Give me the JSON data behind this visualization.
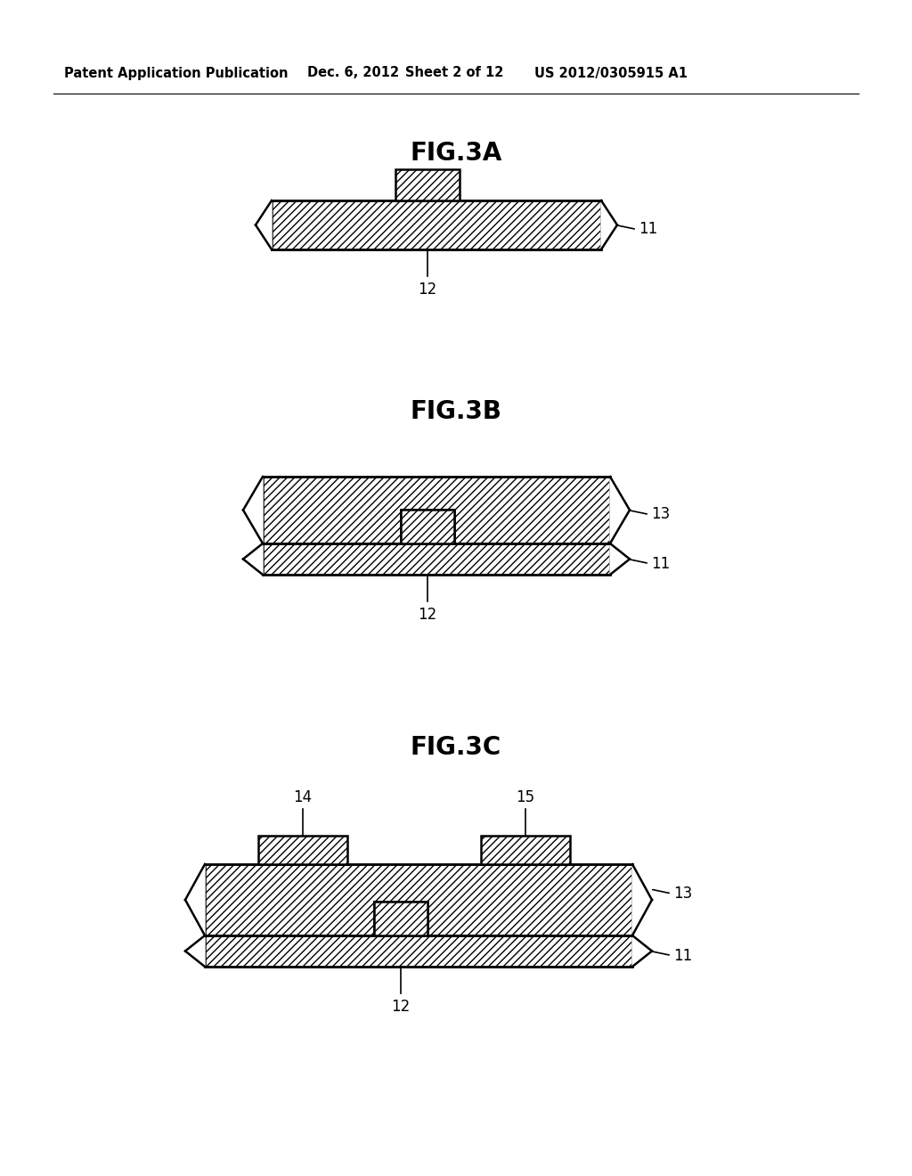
{
  "background_color": "#ffffff",
  "header_text": "Patent Application Publication",
  "header_date": "Dec. 6, 2012",
  "header_sheet": "Sheet 2 of 12",
  "header_patent": "US 2012/0305915 A1",
  "fig3a_title": "FIG.3A",
  "fig3b_title": "FIG.3B",
  "fig3c_title": "FIG.3C",
  "label_11": "11",
  "label_12": "12",
  "label_13": "13",
  "label_14": "14",
  "label_15": "15",
  "header_fontsize": 10.5,
  "title_fontsize": 20,
  "label_fontsize": 12
}
